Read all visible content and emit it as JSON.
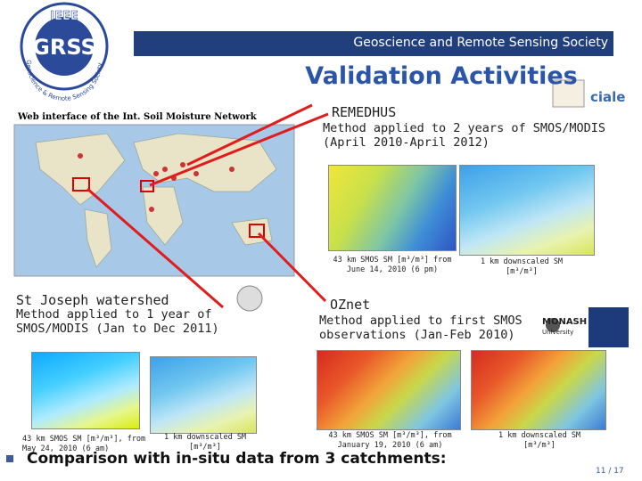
{
  "logo": {
    "org": "IEEE",
    "name": "GRSS",
    "ring": "Geoscience & Remote Sensing Society"
  },
  "header": {
    "society": "Geoscience and Remote Sensing Society",
    "title": "Validation Activities"
  },
  "map": {
    "caption": "Web interface of the Int. Soil Moisture Network"
  },
  "remedhus": {
    "title": "REMEDHUS",
    "description": "Method applied to 2 years of SMOS/MODIS (April 2010-April 2012)",
    "caption_smos": "43 km SMOS SM [m³/m³] from June 14, 2010 (6 pm)",
    "caption_downscaled": "1 km downscaled SM [m³/m³]",
    "logos": [
      "ciale"
    ]
  },
  "st_joseph": {
    "title": "St Joseph watershed",
    "description": "Method applied to 1 year of SMOS/MODIS (Jan to Dec 2011)",
    "caption_smos": "43 km SMOS SM [m³/m³], from May 24, 2010 (6 am)",
    "caption_downscaled": "1 km downscaled SM [m³/m³]"
  },
  "oznet": {
    "title": "OZnet",
    "description": "Method applied to first SMOS observations (Jan-Feb 2010)",
    "caption_smos": "43 km SMOS SM [m³/m³], from January 19, 2010 (6 am)",
    "caption_downscaled": "1 km downscaled SM [m³/m³]",
    "logos": [
      "MONASH",
      "University"
    ]
  },
  "bullet": "Comparison with in-situ data from 3 catchments:",
  "page": "11 / 17"
}
